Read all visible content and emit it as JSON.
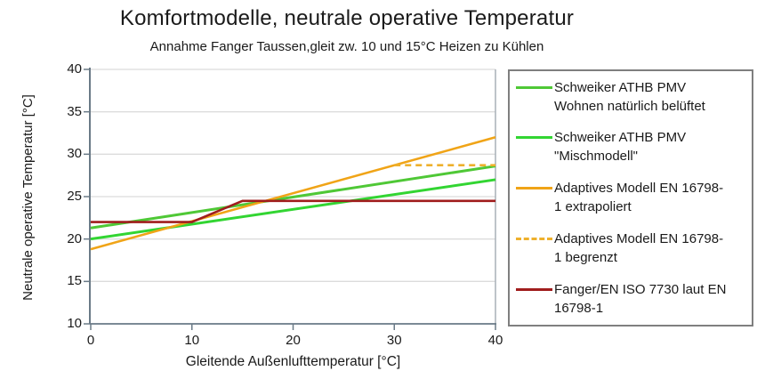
{
  "title": "Komfortmodelle, neutrale operative Temperatur",
  "subtitle": "Annahme Fanger Taussen,gleit zw. 10 und 15°C Heizen zu Kühlen",
  "chart_data": {
    "type": "line",
    "title": "Komfortmodelle, neutrale operative Temperatur",
    "subtitle": "Annahme Fanger Taussen,gleit zw. 10 und 15°C Heizen zu Kühlen",
    "xlabel": "Gleitende Außenlufttemperatur [°C]",
    "ylabel": "Neutrale operative Temperatur [°C]",
    "xlim": [
      0,
      40
    ],
    "ylim": [
      10,
      40
    ],
    "xticks": [
      0,
      10,
      20,
      30,
      40
    ],
    "yticks": [
      10,
      15,
      20,
      25,
      30,
      35,
      40
    ],
    "grid": "horizontal",
    "legend_position": "right",
    "colors": {
      "axis": "#6a7a87",
      "gridline": "#dcdcdc",
      "plot_right_border": "#a8b0b7",
      "legend_border": "#7f7f7f",
      "text": "#1a1a1a"
    },
    "series": [
      {
        "name": "Schweiker ATHB PMV Wohnen natürlich belüftet",
        "legend_lines": [
          "Schweiker ATHB PMV",
          "Wohnen natürlich belüftet"
        ],
        "color": "#4fc836",
        "dash": "solid",
        "width": 3,
        "points": [
          [
            0,
            21.3
          ],
          [
            40,
            28.6
          ]
        ]
      },
      {
        "name": "Schweiker ATHB PMV \"Mischmodell\"",
        "legend_lines": [
          "Schweiker ATHB PMV",
          "\"Mischmodell\""
        ],
        "color": "#32d532",
        "dash": "solid",
        "width": 3,
        "points": [
          [
            0,
            20.0
          ],
          [
            40,
            27.0
          ]
        ]
      },
      {
        "name": "Adaptives Modell EN 16798-1 extrapoliert",
        "legend_lines": [
          "Adaptives Modell EN 16798-",
          "1 extrapoliert"
        ],
        "color": "#f0a417",
        "dash": "solid",
        "width": 2.6,
        "points": [
          [
            0,
            18.8
          ],
          [
            40,
            32.0
          ]
        ]
      },
      {
        "name": "Adaptives Modell EN 16798-1 begrenzt",
        "legend_lines": [
          "Adaptives Modell EN 16798-",
          "1 begrenzt"
        ],
        "color": "#eeb02c",
        "dash": "dashed",
        "width": 2.6,
        "points": [
          [
            30,
            28.7
          ],
          [
            40,
            28.7
          ]
        ]
      },
      {
        "name": "Fanger/EN ISO 7730 laut EN 16798-1",
        "legend_lines": [
          "Fanger/EN ISO 7730 laut EN",
          "16798-1"
        ],
        "color": "#a01d1d",
        "dash": "solid",
        "width": 2.6,
        "points": [
          [
            0,
            22.0
          ],
          [
            10,
            22.0
          ],
          [
            15,
            24.5
          ],
          [
            40,
            24.5
          ]
        ]
      }
    ]
  }
}
